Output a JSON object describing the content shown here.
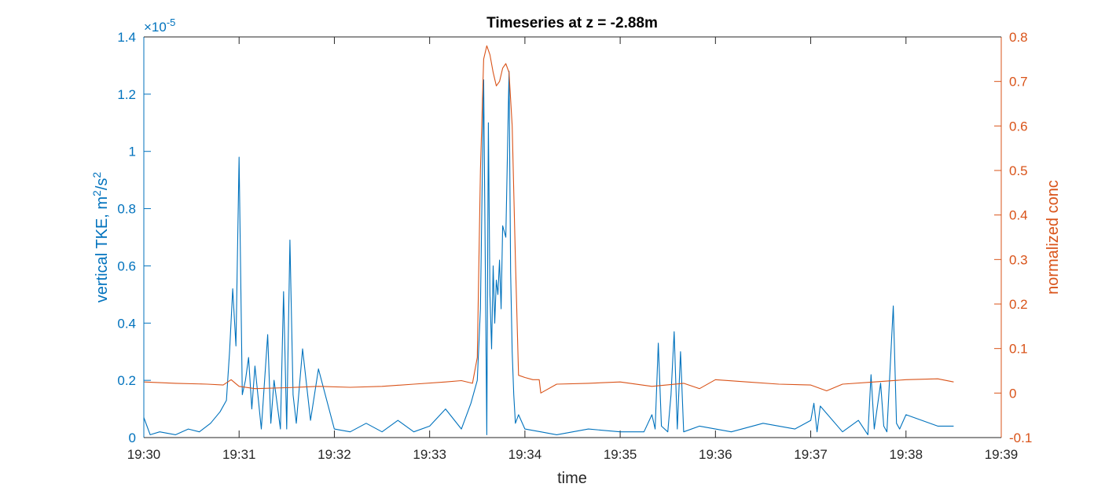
{
  "chart_data": {
    "type": "line",
    "title": "Timeseries at z = -2.88m",
    "xlabel": "time",
    "x_ticks": [
      "19:30",
      "19:31",
      "19:32",
      "19:33",
      "19:34",
      "19:35",
      "19:36",
      "19:37",
      "19:38",
      "19:39"
    ],
    "xlim": [
      "19:30:00",
      "19:39:00"
    ],
    "grid": false,
    "left_axis": {
      "label_main": "vertical TKE, m",
      "label_sup1": "2",
      "label_mid": "/s",
      "label_sup2": "2",
      "exponent_prefix": "×10",
      "exponent_power": "-5",
      "ylim": [
        0,
        1.4
      ],
      "ticks": [
        "0",
        "0.2",
        "0.4",
        "0.6",
        "0.8",
        "1",
        "1.2",
        "1.4"
      ],
      "color": "#0072BD"
    },
    "right_axis": {
      "label": "normalized conc",
      "ylim": [
        -0.1,
        0.8
      ],
      "ticks": [
        "-0.1",
        "0",
        "0.1",
        "0.2",
        "0.3",
        "0.4",
        "0.5",
        "0.6",
        "0.7",
        "0.8"
      ],
      "color": "#D95319"
    },
    "series": [
      {
        "axis": "left",
        "color": "#0072BD",
        "x": [
          "19:30:00",
          "19:30:04",
          "19:30:10",
          "19:30:20",
          "19:30:28",
          "19:30:35",
          "19:30:42",
          "19:30:48",
          "19:30:52",
          "19:30:54",
          "19:30:56",
          "19:30:58",
          "19:31:00",
          "19:31:02",
          "19:31:04",
          "19:31:06",
          "19:31:08",
          "19:31:10",
          "19:31:14",
          "19:31:18",
          "19:31:20",
          "19:31:22",
          "19:31:26",
          "19:31:28",
          "19:31:30",
          "19:31:32",
          "19:31:34",
          "19:31:36",
          "19:31:40",
          "19:31:45",
          "19:31:50",
          "19:32:00",
          "19:32:10",
          "19:32:20",
          "19:32:30",
          "19:32:40",
          "19:32:50",
          "19:33:00",
          "19:33:10",
          "19:33:20",
          "19:33:26",
          "19:33:30",
          "19:33:32",
          "19:33:34",
          "19:33:36",
          "19:33:37",
          "19:33:38",
          "19:33:39",
          "19:33:40",
          "19:33:41",
          "19:33:42",
          "19:33:43",
          "19:33:44",
          "19:33:45",
          "19:33:46",
          "19:33:48",
          "19:33:50",
          "19:33:51",
          "19:33:52",
          "19:33:53",
          "19:33:54",
          "19:33:56",
          "19:34:00",
          "19:34:10",
          "19:34:20",
          "19:34:40",
          "19:35:00",
          "19:35:15",
          "19:35:20",
          "19:35:22",
          "19:35:24",
          "19:35:26",
          "19:35:30",
          "19:35:32",
          "19:35:34",
          "19:35:36",
          "19:35:38",
          "19:35:40",
          "19:35:50",
          "19:36:10",
          "19:36:30",
          "19:36:50",
          "19:37:00",
          "19:37:02",
          "19:37:04",
          "19:37:06",
          "19:37:20",
          "19:37:30",
          "19:37:36",
          "19:37:38",
          "19:37:40",
          "19:37:44",
          "19:37:46",
          "19:37:48",
          "19:37:52",
          "19:37:54",
          "19:37:56",
          "19:38:00",
          "19:38:10",
          "19:38:20",
          "19:38:30"
        ],
        "values": [
          0.07,
          0.01,
          0.02,
          0.01,
          0.03,
          0.02,
          0.05,
          0.09,
          0.13,
          0.3,
          0.52,
          0.32,
          0.98,
          0.15,
          0.2,
          0.28,
          0.1,
          0.25,
          0.03,
          0.36,
          0.05,
          0.2,
          0.03,
          0.51,
          0.03,
          0.69,
          0.15,
          0.05,
          0.31,
          0.06,
          0.24,
          0.03,
          0.02,
          0.05,
          0.02,
          0.06,
          0.02,
          0.04,
          0.1,
          0.03,
          0.12,
          0.2,
          0.45,
          1.25,
          0.01,
          1.1,
          0.5,
          0.31,
          0.6,
          0.4,
          0.55,
          0.5,
          0.62,
          0.45,
          0.74,
          0.7,
          1.28,
          0.58,
          0.3,
          0.15,
          0.05,
          0.08,
          0.03,
          0.02,
          0.01,
          0.03,
          0.02,
          0.02,
          0.08,
          0.03,
          0.33,
          0.04,
          0.02,
          0.15,
          0.37,
          0.03,
          0.3,
          0.02,
          0.04,
          0.02,
          0.05,
          0.03,
          0.06,
          0.12,
          0.02,
          0.11,
          0.02,
          0.06,
          0.01,
          0.22,
          0.03,
          0.19,
          0.04,
          0.02,
          0.46,
          0.05,
          0.03,
          0.08,
          0.06,
          0.04,
          0.04
        ]
      },
      {
        "axis": "right",
        "color": "#D95319",
        "x": [
          "19:30:00",
          "19:30:20",
          "19:30:40",
          "19:30:50",
          "19:30:55",
          "19:31:00",
          "19:31:10",
          "19:31:30",
          "19:31:50",
          "19:32:10",
          "19:32:30",
          "19:32:50",
          "19:33:10",
          "19:33:20",
          "19:33:27",
          "19:33:30",
          "19:33:32",
          "19:33:34",
          "19:33:36",
          "19:33:38",
          "19:33:40",
          "19:33:42",
          "19:33:44",
          "19:33:46",
          "19:33:48",
          "19:33:50",
          "19:33:52",
          "19:33:54",
          "19:33:56",
          "19:34:00",
          "19:34:05",
          "19:34:09",
          "19:34:10",
          "19:34:20",
          "19:34:40",
          "19:35:00",
          "19:35:20",
          "19:35:40",
          "19:35:50",
          "19:36:00",
          "19:36:20",
          "19:36:40",
          "19:37:00",
          "19:37:10",
          "19:37:20",
          "19:37:40",
          "19:38:00",
          "19:38:20",
          "19:38:30"
        ],
        "values": [
          0.025,
          0.022,
          0.02,
          0.018,
          0.03,
          0.015,
          0.01,
          0.012,
          0.015,
          0.013,
          0.015,
          0.02,
          0.025,
          0.028,
          0.022,
          0.08,
          0.5,
          0.75,
          0.78,
          0.76,
          0.72,
          0.69,
          0.7,
          0.73,
          0.74,
          0.72,
          0.6,
          0.3,
          0.04,
          0.035,
          0.03,
          0.03,
          0.0,
          0.02,
          0.022,
          0.025,
          0.015,
          0.022,
          0.01,
          0.03,
          0.025,
          0.02,
          0.018,
          0.005,
          0.02,
          0.025,
          0.03,
          0.032,
          0.025
        ]
      }
    ]
  }
}
